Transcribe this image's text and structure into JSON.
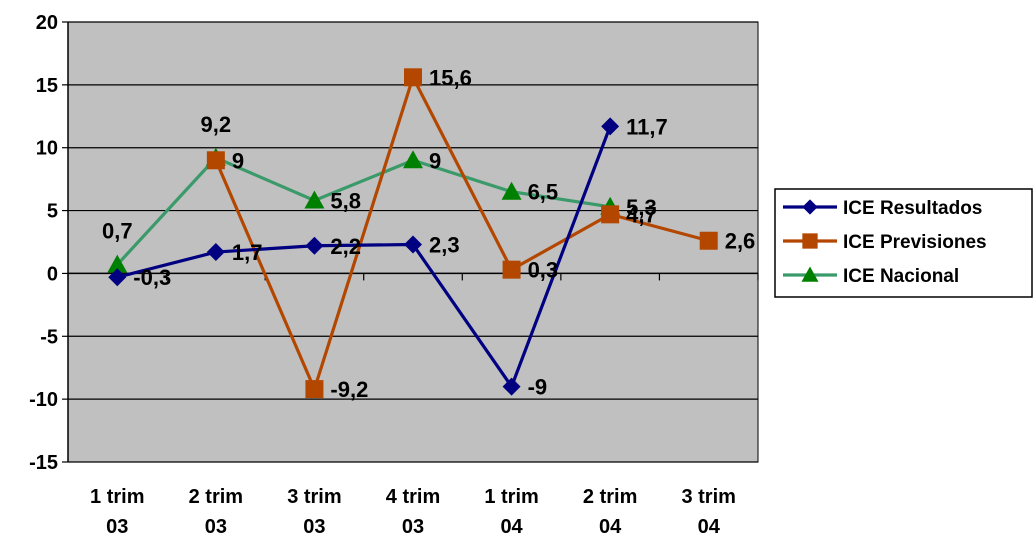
{
  "chart_data": {
    "type": "line",
    "categories": [
      [
        "1 trim",
        "03"
      ],
      [
        "2 trim",
        "03"
      ],
      [
        "3 trim",
        "03"
      ],
      [
        "4 trim",
        "03"
      ],
      [
        "1 trim",
        "04"
      ],
      [
        "2 trim",
        "04"
      ],
      [
        "3 trim",
        "04"
      ]
    ],
    "ylim": [
      -15,
      20
    ],
    "yticks": [
      "20",
      "15",
      "10",
      "5",
      "0",
      "-5",
      "-10",
      "-15"
    ],
    "ytick_values": [
      20,
      15,
      10,
      5,
      0,
      -5,
      -10,
      -15
    ],
    "grid": true,
    "legend_position": "right",
    "plot_background": "#c0c0c0",
    "series": [
      {
        "name": "ICE Resultados",
        "color": "#000080",
        "marker": "diamond",
        "values": [
          -0.3,
          1.7,
          2.2,
          2.3,
          -9,
          11.7,
          null
        ],
        "labels": [
          "-0,3",
          "1,7",
          "2,2",
          "2,3",
          "-9",
          "11,7",
          null
        ]
      },
      {
        "name": "ICE Previsiones",
        "color": "#b34700",
        "marker": "square",
        "values": [
          null,
          9,
          -9.2,
          15.6,
          0.3,
          4.7,
          2.6
        ],
        "labels": [
          null,
          "9",
          "-9,2",
          "15,6",
          "0,3",
          "4,7",
          "2,6"
        ]
      },
      {
        "name": "ICE Nacional",
        "color": "#3a9a6a",
        "marker": "triangle",
        "marker_color": "#008000",
        "values": [
          0.7,
          9.2,
          5.8,
          9,
          6.5,
          5.3,
          null
        ],
        "labels": [
          "0,7",
          "9,2",
          "5,8",
          "9",
          "6,5",
          "5,3",
          null
        ]
      }
    ]
  }
}
